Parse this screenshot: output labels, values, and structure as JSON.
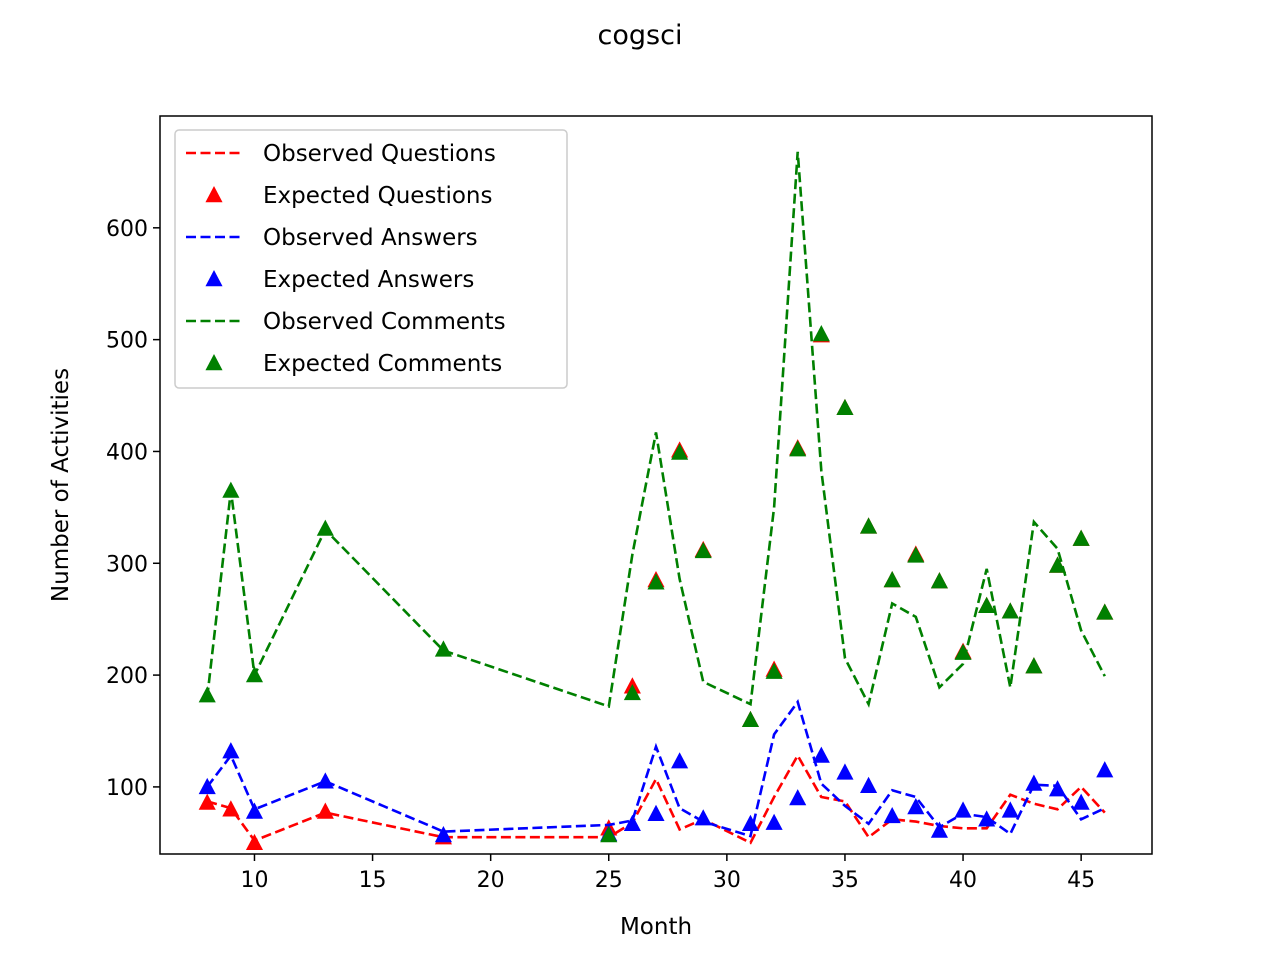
{
  "chart_data": {
    "type": "line",
    "title": "cogsci",
    "xlabel": "Month",
    "ylabel": "Number of Activities",
    "xlim": [
      6,
      48
    ],
    "ylim": [
      40,
      700
    ],
    "xticks": [
      10,
      15,
      20,
      25,
      30,
      35,
      40,
      45
    ],
    "yticks": [
      100,
      200,
      300,
      400,
      500,
      600
    ],
    "grid": false,
    "legend_position": "top-left",
    "x": [
      8,
      9,
      10,
      13,
      18,
      25,
      26,
      27,
      28,
      29,
      31,
      32,
      33,
      34,
      35,
      36,
      37,
      38,
      39,
      40,
      41,
      42,
      43,
      44,
      45,
      46
    ],
    "series": [
      {
        "name": "Observed Questions",
        "style": "dashed-line",
        "color": "#ff0000",
        "values": [
          87,
          81,
          52,
          77,
          55,
          55,
          68,
          107,
          62,
          71,
          50,
          91,
          128,
          91,
          87,
          55,
          71,
          69,
          65,
          63,
          63,
          93,
          85,
          80,
          100,
          77
        ]
      },
      {
        "name": "Expected Questions",
        "style": "triangle-marker",
        "color": "#ff0000",
        "values": [
          86,
          80,
          50,
          78,
          55,
          63,
          190,
          285,
          401,
          312,
          160,
          205,
          403,
          504,
          439,
          333,
          285,
          308,
          284,
          221,
          262,
          257,
          208,
          298,
          322,
          256
        ]
      },
      {
        "name": "Observed Answers",
        "style": "dashed-line",
        "color": "#0000ff",
        "values": [
          100,
          128,
          80,
          105,
          60,
          66,
          70,
          136,
          81,
          69,
          56,
          147,
          176,
          103,
          83,
          67,
          97,
          91,
          64,
          76,
          73,
          58,
          102,
          101,
          71,
          81
        ]
      },
      {
        "name": "Expected Answers",
        "style": "triangle-marker",
        "color": "#0000ff",
        "values": [
          100,
          132,
          78,
          105,
          57,
          58,
          67,
          76,
          123,
          72,
          67,
          68,
          90,
          128,
          113,
          101,
          74,
          82,
          61,
          79,
          71,
          79,
          103,
          98,
          86,
          115
        ]
      },
      {
        "name": "Observed Comments",
        "style": "dashed-line",
        "color": "#008000",
        "values": [
          180,
          365,
          200,
          330,
          222,
          172,
          308,
          417,
          286,
          194,
          174,
          350,
          668,
          383,
          215,
          174,
          264,
          252,
          189,
          210,
          295,
          189,
          337,
          313,
          240,
          199
        ]
      },
      {
        "name": "Expected Comments",
        "style": "triangle-marker",
        "color": "#008000",
        "values": [
          182,
          365,
          200,
          331,
          223,
          57,
          184,
          283,
          399,
          311,
          160,
          203,
          402,
          505,
          439,
          333,
          285,
          307,
          284,
          220,
          262,
          257,
          208,
          298,
          322,
          256
        ]
      }
    ]
  }
}
